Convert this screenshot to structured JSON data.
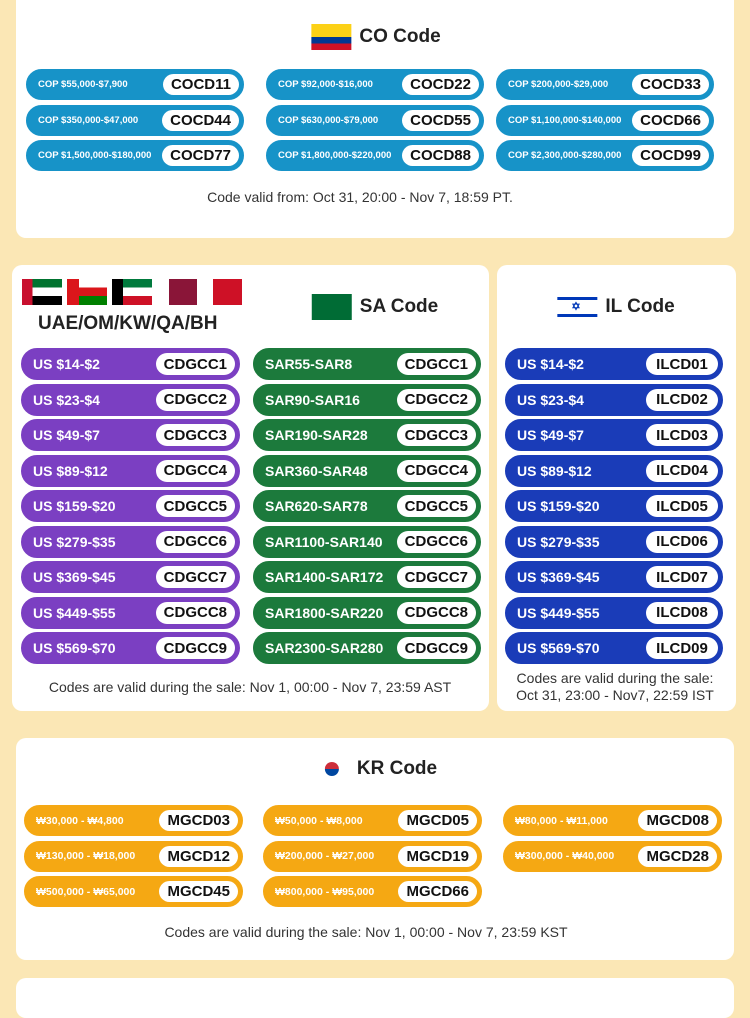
{
  "co": {
    "title": "CO Code",
    "footer": "Code valid from: Oct 31, 20:00 - Nov 7, 18:59 PT.",
    "color": "#1793c8",
    "items": [
      [
        "COP $55,000-$7,900",
        "COCD11"
      ],
      [
        "COP $92,000-$16,000",
        "COCD22"
      ],
      [
        "COP $200,000-$29,000",
        "COCD33"
      ],
      [
        "COP $350,000-$47,000",
        "COCD44"
      ],
      [
        "COP $630,000-$79,000",
        "COCD55"
      ],
      [
        "COP $1,100,000-$140,000",
        "COCD66"
      ],
      [
        "COP $1,500,000-$180,000",
        "COCD77"
      ],
      [
        "COP $1,800,000-$220,000",
        "COCD88"
      ],
      [
        "COP $2,300,000-$280,000",
        "COCD99"
      ]
    ]
  },
  "gcc": {
    "title": "UAE/OM/KW/QA/BH",
    "color": "#7b3fc2",
    "items": [
      [
        "US $14-$2",
        "CDGCC1"
      ],
      [
        "US $23-$4",
        "CDGCC2"
      ],
      [
        "US $49-$7",
        "CDGCC3"
      ],
      [
        "US $89-$12",
        "CDGCC4"
      ],
      [
        "US $159-$20",
        "CDGCC5"
      ],
      [
        "US $279-$35",
        "CDGCC6"
      ],
      [
        "US $369-$45",
        "CDGCC7"
      ],
      [
        "US $449-$55",
        "CDGCC8"
      ],
      [
        "US $569-$70",
        "CDGCC9"
      ]
    ]
  },
  "sa": {
    "title": "SA Code",
    "color": "#1c7a3c",
    "footer": "Codes are valid during the sale: Nov 1, 00:00 - Nov 7, 23:59 AST",
    "items": [
      [
        "SAR55-SAR8",
        "CDGCC1"
      ],
      [
        "SAR90-SAR16",
        "CDGCC2"
      ],
      [
        "SAR190-SAR28",
        "CDGCC3"
      ],
      [
        "SAR360-SAR48",
        "CDGCC4"
      ],
      [
        "SAR620-SAR78",
        "CDGCC5"
      ],
      [
        "SAR1100-SAR140",
        "CDGCC6"
      ],
      [
        "SAR1400-SAR172",
        "CDGCC7"
      ],
      [
        "SAR1800-SAR220",
        "CDGCC8"
      ],
      [
        "SAR2300-SAR280",
        "CDGCC9"
      ]
    ]
  },
  "il": {
    "title": "IL Code",
    "color": "#1a3cb8",
    "footer_line1": "Codes are valid during the sale:",
    "footer_line2": "Oct 31, 23:00 - Nov7, 22:59 IST",
    "items": [
      [
        "US $14-$2",
        "ILCD01"
      ],
      [
        "US $23-$4",
        "ILCD02"
      ],
      [
        "US $49-$7",
        "ILCD03"
      ],
      [
        "US $89-$12",
        "ILCD04"
      ],
      [
        "US $159-$20",
        "ILCD05"
      ],
      [
        "US $279-$35",
        "ILCD06"
      ],
      [
        "US $369-$45",
        "ILCD07"
      ],
      [
        "US $449-$55",
        "ILCD08"
      ],
      [
        "US $569-$70",
        "ILCD09"
      ]
    ]
  },
  "kr": {
    "title": "KR Code",
    "color": "#f5a813",
    "footer": "Codes are valid during the sale: Nov 1, 00:00 - Nov 7, 23:59 KST",
    "items": [
      [
        "₩30,000 - ₩4,800",
        "MGCD03"
      ],
      [
        "₩50,000 - ₩8,000",
        "MGCD05"
      ],
      [
        "₩80,000 - ₩11,000",
        "MGCD08"
      ],
      [
        "₩130,000 - ₩18,000",
        "MGCD12"
      ],
      [
        "₩200,000 - ₩27,000",
        "MGCD19"
      ],
      [
        "₩300,000 - ₩40,000",
        "MGCD28"
      ],
      [
        "₩500,000 - ₩65,000",
        "MGCD45"
      ],
      [
        "₩800,000 - ₩95,000",
        "MGCD66"
      ]
    ]
  }
}
